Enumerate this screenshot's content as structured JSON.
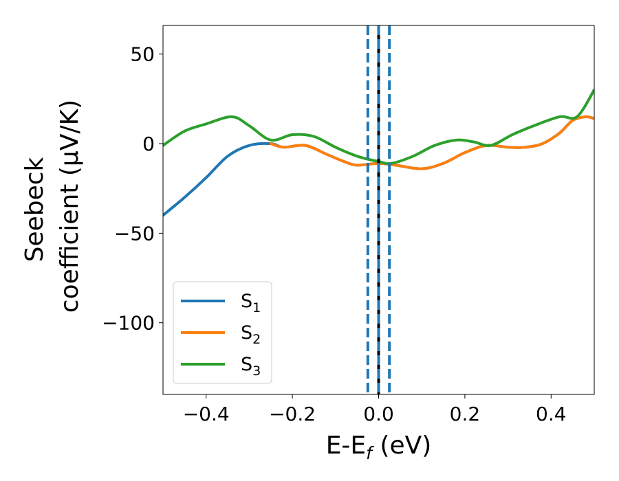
{
  "chart_data": {
    "type": "line",
    "xlabel": "E-E",
    "xlabel_sub": "f",
    "xlabel_unit": " (eV)",
    "ylabel_line1": "Seebeck",
    "ylabel_line2": "coefficient  (μV/K)",
    "xlim": [
      -0.5,
      0.5
    ],
    "ylim": [
      -140,
      66
    ],
    "xticks": [
      -0.4,
      -0.2,
      0.0,
      0.2,
      0.4
    ],
    "xtick_labels": [
      "−0.4",
      "−0.2",
      "0.0",
      "0.2",
      "0.4"
    ],
    "yticks": [
      50,
      0,
      -50,
      -100
    ],
    "ytick_labels": [
      "50",
      "0",
      "−50",
      "−100"
    ],
    "grid": false,
    "legend_position": "lower-left",
    "vlines": [
      {
        "x": 0.0,
        "color": "#000000",
        "style": "solid"
      },
      {
        "x": -0.025,
        "color": "#1f77b4",
        "style": "dashed"
      },
      {
        "x": 0.0,
        "color": "#1f77b4",
        "style": "dashed"
      },
      {
        "x": 0.025,
        "color": "#1f77b4",
        "style": "dashed"
      }
    ],
    "series": [
      {
        "name": "S",
        "sub": "1",
        "color": "#1f77b4",
        "points": [
          [
            -0.5,
            -40
          ],
          [
            -0.45,
            -30
          ],
          [
            -0.4,
            -19
          ],
          [
            -0.35,
            -7
          ],
          [
            -0.3,
            -1
          ],
          [
            -0.25,
            0
          ],
          [
            -0.22,
            -2
          ],
          [
            -0.17,
            -1
          ],
          [
            -0.12,
            -6
          ],
          [
            -0.08,
            -10
          ],
          [
            -0.05,
            -12
          ],
          [
            0.0,
            -11
          ],
          [
            0.04,
            -12
          ],
          [
            0.1,
            -14
          ],
          [
            0.15,
            -11
          ],
          [
            0.2,
            -5
          ],
          [
            0.25,
            -1
          ],
          [
            0.3,
            -2
          ],
          [
            0.34,
            -2
          ],
          [
            0.38,
            0
          ],
          [
            0.42,
            6
          ],
          [
            0.45,
            13
          ],
          [
            0.48,
            15
          ],
          [
            0.5,
            14
          ]
        ]
      },
      {
        "name": "S",
        "sub": "2",
        "color": "#ff7f0e",
        "points": [
          [
            -0.25,
            0
          ],
          [
            -0.22,
            -2
          ],
          [
            -0.17,
            -1
          ],
          [
            -0.12,
            -6
          ],
          [
            -0.08,
            -10
          ],
          [
            -0.05,
            -12
          ],
          [
            0.0,
            -11
          ],
          [
            0.04,
            -12
          ],
          [
            0.1,
            -14
          ],
          [
            0.15,
            -11
          ],
          [
            0.2,
            -5
          ],
          [
            0.25,
            -1
          ],
          [
            0.3,
            -2
          ],
          [
            0.34,
            -2
          ],
          [
            0.38,
            0
          ],
          [
            0.42,
            6
          ],
          [
            0.45,
            13
          ],
          [
            0.48,
            15
          ],
          [
            0.5,
            14
          ]
        ]
      },
      {
        "name": "S",
        "sub": "3",
        "color": "#2ca02c",
        "points": [
          [
            -0.5,
            -1
          ],
          [
            -0.45,
            7
          ],
          [
            -0.4,
            11
          ],
          [
            -0.34,
            15
          ],
          [
            -0.3,
            10
          ],
          [
            -0.25,
            2
          ],
          [
            -0.2,
            5
          ],
          [
            -0.15,
            4
          ],
          [
            -0.1,
            -2
          ],
          [
            -0.05,
            -7
          ],
          [
            0.0,
            -10
          ],
          [
            0.03,
            -11
          ],
          [
            0.08,
            -7
          ],
          [
            0.13,
            -1
          ],
          [
            0.18,
            2
          ],
          [
            0.22,
            1
          ],
          [
            0.26,
            -1
          ],
          [
            0.31,
            5
          ],
          [
            0.36,
            10
          ],
          [
            0.42,
            15
          ],
          [
            0.46,
            15
          ],
          [
            0.5,
            30
          ]
        ]
      }
    ]
  }
}
